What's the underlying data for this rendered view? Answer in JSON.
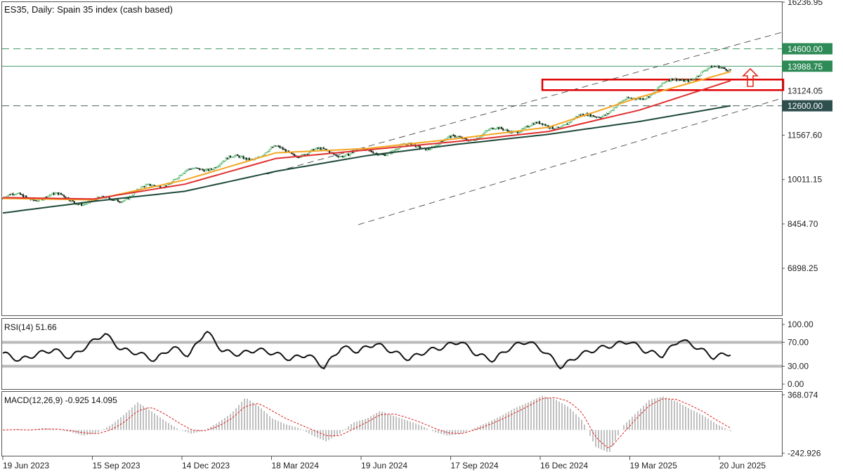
{
  "chart_data": {
    "type": "candlestick",
    "title": "ES35, Daily:  Spain 35 index (cash based)",
    "price_axis": {
      "ylim": [
        5250,
        16237
      ],
      "ticks": [
        "16236.95",
        "11567.60",
        "10011.15",
        "8454.70",
        "6898.25"
      ],
      "tick_values": [
        16236.95,
        11567.6,
        10011.15,
        8454.7,
        6898.25
      ],
      "partial_tick": "13124.05",
      "partial_tick_value": 13124.05
    },
    "x_axis": {
      "labels": [
        "19 Jun 2023",
        "15 Sep 2023",
        "14 Dec 2023",
        "18 Mar 2024",
        "19 Jun 2024",
        "17 Sep 2024",
        "16 Dec 2024",
        "19 Mar 2025",
        "20 Jun 2025"
      ]
    },
    "levels": [
      {
        "value": 14600.0,
        "label": "14600.00",
        "style": "dashed",
        "color": "#2e8b57"
      },
      {
        "value": 13988.75,
        "label": "13988.75",
        "style": "solid",
        "color": "#2e8b57"
      },
      {
        "value": 12600.0,
        "label": "12600.00",
        "style": "dashed",
        "color": "#2f4f4f"
      }
    ],
    "resistance_zone": {
      "from": 13150,
      "to": 13520,
      "color": "#e00000"
    },
    "price_series": {
      "name": "ES35",
      "dates": [
        "19 Jun 2023",
        "15 Sep 2023",
        "14 Dec 2023",
        "18 Mar 2024",
        "19 Jun 2024",
        "17 Sep 2024",
        "16 Dec 2024",
        "19 Mar 2025",
        "20 Jun 2025"
      ],
      "close": [
        9350,
        9250,
        10100,
        11150,
        10800,
        11550,
        11800,
        12950,
        13990
      ]
    },
    "moving_averages": [
      {
        "color": "#f5a623",
        "values": [
          9350,
          9300,
          10000,
          10950,
          11100,
          11450,
          11850,
          12900,
          13800
        ]
      },
      {
        "color": "#e03030",
        "values": [
          9380,
          9330,
          9850,
          10750,
          11050,
          11350,
          11700,
          12450,
          13480
        ]
      },
      {
        "color": "#1f4a3a",
        "values": [
          8840,
          9250,
          9600,
          10300,
          10850,
          11250,
          11600,
          12050,
          12600
        ]
      }
    ],
    "rsi": {
      "label": "RSI(14) 51.66",
      "ticks": [
        "100.00",
        "70.00",
        "30.00",
        "0.00"
      ],
      "tick_values": [
        100,
        70,
        30,
        0
      ],
      "levels": [
        70,
        30
      ],
      "last": 51.66,
      "values": [
        52,
        40,
        50,
        58,
        44,
        65,
        85,
        58,
        52,
        40,
        62,
        48,
        90,
        55,
        50,
        58,
        52,
        42,
        50,
        28,
        62,
        55,
        68,
        55,
        42,
        55,
        62,
        72,
        50,
        40,
        62,
        72,
        55,
        28,
        48,
        58,
        65,
        72,
        55,
        48,
        75,
        62,
        45,
        52
      ]
    },
    "macd": {
      "label": "MACD(12,26,9) -0.925 14.095",
      "ticks": [
        "368.074",
        "-242.926"
      ],
      "tick_values": [
        368.074,
        -242.926
      ],
      "ylim": [
        -270,
        400
      ],
      "histogram": [
        0,
        10,
        -5,
        20,
        5,
        -20,
        -60,
        -30,
        50,
        160,
        290,
        200,
        100,
        10,
        -40,
        0,
        80,
        180,
        340,
        250,
        120,
        60,
        20,
        -60,
        -120,
        -40,
        80,
        120,
        200,
        150,
        100,
        50,
        -20,
        -60,
        -40,
        20,
        80,
        150,
        230,
        290,
        360,
        320,
        240,
        100,
        -180,
        -240,
        40,
        180,
        320,
        350,
        300,
        220,
        150,
        60,
        -10
      ],
      "signal": [
        0,
        5,
        0,
        10,
        10,
        -5,
        -30,
        -40,
        0,
        80,
        200,
        240,
        170,
        80,
        0,
        -10,
        40,
        120,
        250,
        280,
        200,
        120,
        60,
        0,
        -60,
        -60,
        10,
        80,
        160,
        170,
        130,
        80,
        20,
        -30,
        -40,
        0,
        50,
        110,
        180,
        250,
        330,
        340,
        300,
        180,
        -80,
        -200,
        -40,
        120,
        260,
        330,
        320,
        260,
        190,
        100,
        20
      ]
    }
  }
}
